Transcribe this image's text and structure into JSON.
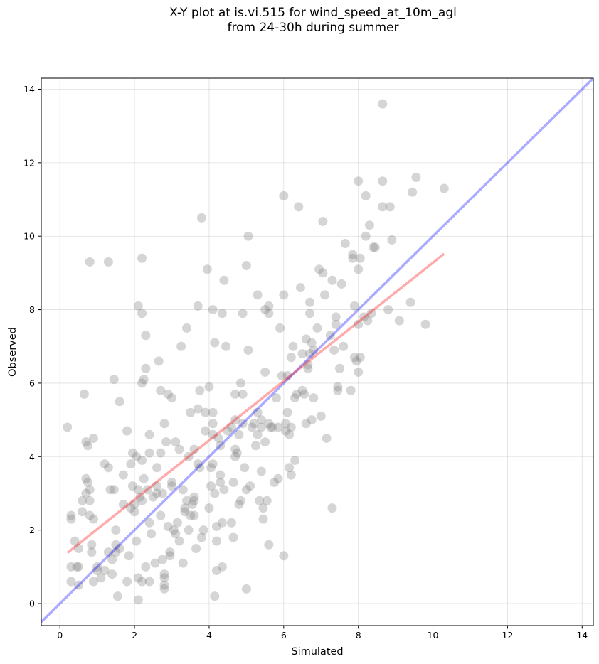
{
  "chart_data": {
    "type": "scatter",
    "title": "X-Y plot at is.vi.515 for wind_speed_at_10m_agl",
    "subtitle": "from 24-30h during summer",
    "xlabel": "Simulated",
    "ylabel": "Observed",
    "xlim": [
      -0.5,
      14.3
    ],
    "ylim": [
      -0.6,
      14.3
    ],
    "xticks": [
      0,
      2,
      4,
      6,
      8,
      10,
      12,
      14
    ],
    "yticks": [
      0,
      2,
      4,
      6,
      8,
      10,
      12,
      14
    ],
    "grid": true,
    "point_color": "#808080",
    "one_to_one_line": {
      "x": [
        -0.5,
        14.3
      ],
      "y": [
        -0.5,
        14.3
      ],
      "color": "#0000ff"
    },
    "regression_line": {
      "x": [
        0.2,
        10.3
      ],
      "y": [
        1.38,
        9.52
      ],
      "color": "#ff0000"
    },
    "points": [
      [
        0.2,
        4.8
      ],
      [
        0.3,
        2.4
      ],
      [
        0.3,
        2.3
      ],
      [
        0.3,
        1.0
      ],
      [
        0.3,
        0.6
      ],
      [
        0.4,
        1.7
      ],
      [
        0.45,
        1.0
      ],
      [
        0.5,
        1.5
      ],
      [
        0.5,
        1.0
      ],
      [
        0.5,
        0.5
      ],
      [
        0.6,
        2.5
      ],
      [
        0.6,
        2.8
      ],
      [
        0.65,
        5.7
      ],
      [
        0.7,
        4.4
      ],
      [
        0.7,
        3.4
      ],
      [
        0.7,
        3.0
      ],
      [
        0.75,
        4.3
      ],
      [
        0.75,
        3.3
      ],
      [
        0.8,
        3.1
      ],
      [
        0.8,
        2.8
      ],
      [
        0.8,
        2.4
      ],
      [
        0.8,
        9.3
      ],
      [
        0.85,
        1.6
      ],
      [
        0.85,
        1.4
      ],
      [
        0.9,
        0.6
      ],
      [
        0.9,
        4.5
      ],
      [
        0.9,
        2.3
      ],
      [
        1.0,
        0.9
      ],
      [
        1.0,
        1.0
      ],
      [
        1.1,
        0.7
      ],
      [
        1.2,
        3.8
      ],
      [
        1.2,
        0.9
      ],
      [
        1.3,
        3.7
      ],
      [
        1.3,
        1.4
      ],
      [
        1.3,
        9.3
      ],
      [
        1.35,
        3.1
      ],
      [
        1.4,
        0.8
      ],
      [
        1.4,
        1.2
      ],
      [
        1.45,
        6.1
      ],
      [
        1.45,
        3.1
      ],
      [
        1.5,
        1.6
      ],
      [
        1.5,
        2.0
      ],
      [
        1.5,
        1.4
      ],
      [
        1.55,
        0.2
      ],
      [
        1.6,
        5.5
      ],
      [
        1.6,
        1.5
      ],
      [
        1.7,
        3.5
      ],
      [
        1.7,
        2.7
      ],
      [
        1.8,
        0.6
      ],
      [
        1.8,
        4.7
      ],
      [
        1.85,
        1.3
      ],
      [
        1.9,
        3.8
      ],
      [
        1.9,
        2.6
      ],
      [
        1.95,
        4.1
      ],
      [
        1.95,
        3.2
      ],
      [
        2.0,
        2.5
      ],
      [
        2.0,
        2.7
      ],
      [
        2.05,
        4.0
      ],
      [
        2.05,
        1.7
      ],
      [
        2.1,
        3.1
      ],
      [
        2.1,
        0.1
      ],
      [
        2.1,
        8.1
      ],
      [
        2.1,
        0.7
      ],
      [
        2.15,
        2.9
      ],
      [
        2.2,
        2.8
      ],
      [
        2.2,
        6.0
      ],
      [
        2.2,
        3.9
      ],
      [
        2.2,
        0.6
      ],
      [
        2.2,
        7.9
      ],
      [
        2.2,
        9.4
      ],
      [
        2.25,
        3.4
      ],
      [
        2.25,
        6.1
      ],
      [
        2.3,
        1.0
      ],
      [
        2.3,
        7.3
      ],
      [
        2.3,
        6.4
      ],
      [
        2.35,
        3.1
      ],
      [
        2.4,
        2.2
      ],
      [
        2.4,
        4.1
      ],
      [
        2.4,
        4.6
      ],
      [
        2.4,
        0.6
      ],
      [
        2.45,
        1.9
      ],
      [
        2.5,
        2.9
      ],
      [
        2.55,
        1.1
      ],
      [
        2.6,
        3.2
      ],
      [
        2.6,
        3.0
      ],
      [
        2.6,
        3.7
      ],
      [
        2.65,
        6.6
      ],
      [
        2.7,
        5.8
      ],
      [
        2.7,
        4.1
      ],
      [
        2.7,
        2.4
      ],
      [
        2.75,
        3.0
      ],
      [
        2.75,
        1.2
      ],
      [
        2.8,
        0.8
      ],
      [
        2.8,
        0.4
      ],
      [
        2.8,
        0.5
      ],
      [
        2.8,
        4.9
      ],
      [
        2.8,
        0.7
      ],
      [
        2.85,
        4.4
      ],
      [
        2.9,
        5.7
      ],
      [
        2.9,
        2.1
      ],
      [
        2.95,
        1.3
      ],
      [
        2.95,
        1.4
      ],
      [
        3.0,
        3.3
      ],
      [
        3.0,
        5.6
      ],
      [
        3.0,
        3.2
      ],
      [
        3.05,
        2.0
      ],
      [
        3.1,
        1.9
      ],
      [
        3.1,
        4.4
      ],
      [
        3.15,
        2.2
      ],
      [
        3.2,
        1.7
      ],
      [
        3.2,
        4.2
      ],
      [
        3.25,
        7.0
      ],
      [
        3.3,
        3.1
      ],
      [
        3.3,
        1.1
      ],
      [
        3.35,
        2.6
      ],
      [
        3.35,
        2.5
      ],
      [
        3.4,
        2.8
      ],
      [
        3.4,
        7.5
      ],
      [
        3.45,
        4.0
      ],
      [
        3.45,
        2.0
      ],
      [
        3.5,
        5.2
      ],
      [
        3.5,
        2.4
      ],
      [
        3.55,
        2.7
      ],
      [
        3.6,
        2.8
      ],
      [
        3.6,
        2.4
      ],
      [
        3.6,
        2.9
      ],
      [
        3.6,
        4.2
      ],
      [
        3.65,
        1.5
      ],
      [
        3.7,
        3.8
      ],
      [
        3.7,
        5.3
      ],
      [
        3.7,
        8.1
      ],
      [
        3.75,
        3.7
      ],
      [
        3.75,
        5.8
      ],
      [
        3.8,
        1.8
      ],
      [
        3.8,
        10.5
      ],
      [
        3.85,
        2.0
      ],
      [
        3.9,
        4.7
      ],
      [
        3.9,
        5.2
      ],
      [
        3.95,
        9.1
      ],
      [
        4.0,
        2.6
      ],
      [
        4.0,
        5.9
      ],
      [
        4.05,
        3.2
      ],
      [
        4.05,
        3.7
      ],
      [
        4.1,
        3.8
      ],
      [
        4.1,
        8.0
      ],
      [
        4.1,
        4.9
      ],
      [
        4.1,
        5.2
      ],
      [
        4.1,
        4.6
      ],
      [
        4.15,
        3.0
      ],
      [
        4.15,
        7.1
      ],
      [
        4.15,
        0.2
      ],
      [
        4.2,
        2.1
      ],
      [
        4.2,
        0.9
      ],
      [
        4.2,
        1.7
      ],
      [
        4.25,
        4.5
      ],
      [
        4.3,
        3.3
      ],
      [
        4.3,
        3.5
      ],
      [
        4.3,
        4.3
      ],
      [
        4.35,
        2.2
      ],
      [
        4.35,
        7.9
      ],
      [
        4.35,
        1.0
      ],
      [
        4.4,
        3.1
      ],
      [
        4.4,
        8.8
      ],
      [
        4.45,
        7.0
      ],
      [
        4.5,
        4.7
      ],
      [
        4.6,
        4.8
      ],
      [
        4.6,
        2.2
      ],
      [
        4.65,
        1.8
      ],
      [
        4.65,
        3.3
      ],
      [
        4.7,
        4.0
      ],
      [
        4.7,
        4.2
      ],
      [
        4.7,
        5.0
      ],
      [
        4.7,
        5.7
      ],
      [
        4.75,
        4.1
      ],
      [
        4.8,
        2.7
      ],
      [
        4.8,
        4.6
      ],
      [
        4.85,
        2.8
      ],
      [
        4.85,
        6.0
      ],
      [
        4.9,
        5.7
      ],
      [
        4.9,
        4.9
      ],
      [
        4.9,
        7.9
      ],
      [
        4.95,
        3.7
      ],
      [
        5.0,
        0.4
      ],
      [
        5.0,
        9.2
      ],
      [
        5.0,
        3.1
      ],
      [
        5.05,
        10.0
      ],
      [
        5.05,
        6.9
      ],
      [
        5.1,
        3.2
      ],
      [
        5.15,
        4.8
      ],
      [
        5.2,
        4.9
      ],
      [
        5.25,
        4.3
      ],
      [
        5.3,
        5.2
      ],
      [
        5.3,
        4.6
      ],
      [
        5.3,
        8.4
      ],
      [
        5.35,
        2.8
      ],
      [
        5.4,
        5.0
      ],
      [
        5.4,
        4.8
      ],
      [
        5.4,
        3.6
      ],
      [
        5.45,
        2.3
      ],
      [
        5.45,
        2.6
      ],
      [
        5.5,
        4.4
      ],
      [
        5.5,
        8.0
      ],
      [
        5.5,
        6.3
      ],
      [
        5.55,
        2.8
      ],
      [
        5.6,
        8.1
      ],
      [
        5.6,
        7.9
      ],
      [
        5.6,
        1.6
      ],
      [
        5.6,
        4.9
      ],
      [
        5.65,
        4.8
      ],
      [
        5.7,
        4.8
      ],
      [
        5.75,
        3.3
      ],
      [
        5.8,
        5.6
      ],
      [
        5.85,
        4.8
      ],
      [
        5.85,
        3.4
      ],
      [
        5.9,
        7.5
      ],
      [
        5.95,
        6.2
      ],
      [
        6.0,
        11.1
      ],
      [
        6.0,
        8.4
      ],
      [
        6.0,
        1.3
      ],
      [
        6.05,
        4.9
      ],
      [
        6.05,
        4.7
      ],
      [
        6.1,
        6.2
      ],
      [
        6.1,
        5.2
      ],
      [
        6.15,
        3.7
      ],
      [
        6.15,
        4.6
      ],
      [
        6.2,
        4.8
      ],
      [
        6.2,
        6.7
      ],
      [
        6.2,
        3.5
      ],
      [
        6.25,
        7.0
      ],
      [
        6.3,
        3.9
      ],
      [
        6.3,
        5.6
      ],
      [
        6.35,
        5.7
      ],
      [
        6.4,
        10.8
      ],
      [
        6.45,
        8.6
      ],
      [
        6.5,
        6.8
      ],
      [
        6.5,
        5.8
      ],
      [
        6.55,
        5.7
      ],
      [
        6.6,
        7.2
      ],
      [
        6.6,
        4.9
      ],
      [
        6.65,
        6.5
      ],
      [
        6.65,
        6.4
      ],
      [
        6.7,
        8.2
      ],
      [
        6.7,
        7.9
      ],
      [
        6.7,
        6.8
      ],
      [
        6.75,
        5.0
      ],
      [
        6.75,
        7.1
      ],
      [
        6.8,
        6.9
      ],
      [
        6.8,
        5.6
      ],
      [
        6.9,
        7.5
      ],
      [
        6.95,
        9.1
      ],
      [
        7.0,
        5.1
      ],
      [
        7.05,
        10.4
      ],
      [
        7.05,
        9.0
      ],
      [
        7.1,
        8.4
      ],
      [
        7.15,
        4.5
      ],
      [
        7.25,
        7.3
      ],
      [
        7.3,
        2.6
      ],
      [
        7.3,
        8.8
      ],
      [
        7.35,
        6.9
      ],
      [
        7.4,
        7.6
      ],
      [
        7.4,
        7.8
      ],
      [
        7.45,
        5.9
      ],
      [
        7.45,
        5.8
      ],
      [
        7.5,
        6.4
      ],
      [
        7.55,
        8.7
      ],
      [
        7.6,
        7.0
      ],
      [
        7.65,
        9.8
      ],
      [
        7.8,
        5.8
      ],
      [
        7.85,
        9.4
      ],
      [
        7.85,
        9.5
      ],
      [
        7.9,
        8.1
      ],
      [
        7.9,
        6.7
      ],
      [
        7.95,
        6.6
      ],
      [
        8.0,
        6.3
      ],
      [
        8.0,
        11.5
      ],
      [
        8.0,
        9.1
      ],
      [
        8.0,
        7.6
      ],
      [
        8.05,
        9.4
      ],
      [
        8.05,
        6.7
      ],
      [
        8.15,
        7.8
      ],
      [
        8.2,
        11.1
      ],
      [
        8.2,
        10.0
      ],
      [
        8.25,
        7.7
      ],
      [
        8.3,
        10.3
      ],
      [
        8.35,
        7.9
      ],
      [
        8.4,
        9.7
      ],
      [
        8.45,
        9.7
      ],
      [
        8.65,
        13.6
      ],
      [
        8.65,
        11.5
      ],
      [
        8.65,
        10.8
      ],
      [
        8.8,
        8.0
      ],
      [
        8.85,
        10.8
      ],
      [
        8.9,
        9.9
      ],
      [
        9.1,
        7.7
      ],
      [
        9.4,
        8.2
      ],
      [
        9.45,
        11.2
      ],
      [
        9.55,
        11.6
      ],
      [
        9.8,
        7.6
      ],
      [
        10.3,
        11.3
      ]
    ]
  }
}
